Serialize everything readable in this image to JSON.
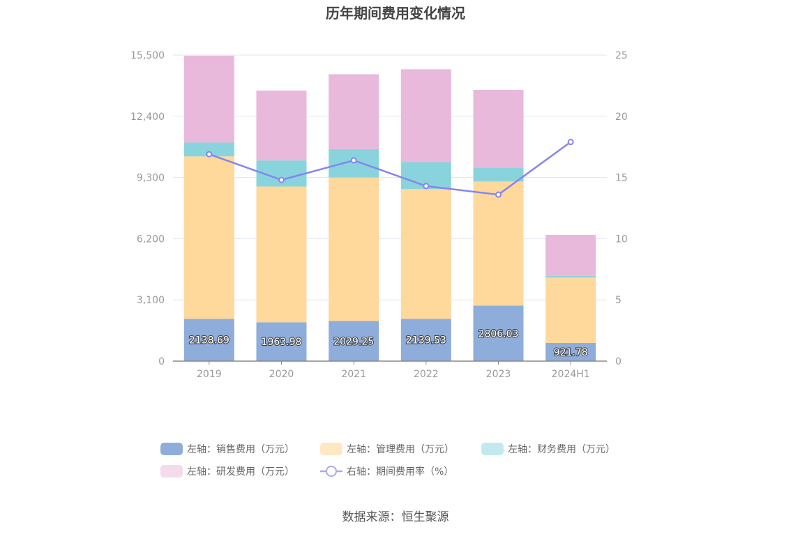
{
  "chart_data": {
    "type": "bar",
    "title": "历年期间费用变化情况",
    "categories": [
      "2019",
      "2020",
      "2021",
      "2022",
      "2023",
      "2024H1"
    ],
    "series": [
      {
        "name": "左轴：销售费用（万元）",
        "axis": "left",
        "stack": true,
        "color": "#8eaddb",
        "values": [
          2138.69,
          1963.98,
          2029.25,
          2139.53,
          2806.03,
          921.78
        ]
      },
      {
        "name": "左轴：管理费用（万元）",
        "axis": "left",
        "stack": true,
        "color": "#ffd89c",
        "values": [
          8230,
          6880,
          7270,
          6570,
          6290,
          3310
        ]
      },
      {
        "name": "左轴：财务费用（万元）",
        "axis": "left",
        "stack": true,
        "color": "#89d4dc",
        "values": [
          700,
          1320,
          1440,
          1370,
          700,
          80
        ]
      },
      {
        "name": "左轴：研发费用（万元）",
        "axis": "left",
        "stack": true,
        "color": "#e8b9db",
        "values": [
          4400,
          3540,
          3790,
          4700,
          3940,
          2080
        ]
      },
      {
        "name": "右轴：期间费用率（%）",
        "axis": "right",
        "type": "line",
        "color": "#8585ee",
        "values": [
          16.9,
          14.8,
          16.4,
          14.3,
          13.6,
          17.9
        ]
      }
    ],
    "bar_labels": [
      "2138.69",
      "1963.98",
      "2029.25",
      "2139.53",
      "2806.03",
      "921.78"
    ],
    "y_left": {
      "ticks": [
        "0",
        "3,100",
        "6,200",
        "9,300",
        "12,400",
        "15,500"
      ],
      "lim": [
        0,
        15500
      ]
    },
    "y_right": {
      "ticks": [
        "0",
        "5",
        "10",
        "15",
        "20",
        "25"
      ],
      "lim": [
        0,
        25
      ]
    },
    "grid": true,
    "legend_position": "bottom"
  },
  "source": "数据来源：恒生聚源"
}
